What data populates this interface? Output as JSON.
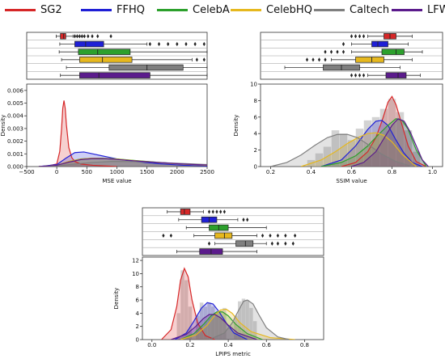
{
  "legend": [
    {
      "name": "SG2",
      "color": "#d62728"
    },
    {
      "name": "FFHQ",
      "color": "#1f1fd6"
    },
    {
      "name": "CelebA",
      "color": "#2ca02c"
    },
    {
      "name": "CelebHQ",
      "color": "#e6b81e"
    },
    {
      "name": "Caltech",
      "color": "#7f7f7f"
    },
    {
      "name": "LFW",
      "color": "#5b1b8c"
    }
  ],
  "chart_data": [
    {
      "type": "box+density",
      "xlabel": "MSE value",
      "ylabel": "Density",
      "xlim": [
        -500,
        2500
      ],
      "ylim": [
        0,
        0.0065
      ],
      "xticks": [
        -500,
        0,
        500,
        1000,
        1500,
        2000,
        2500
      ],
      "yticks": [
        0.0,
        0.001,
        0.002,
        0.003,
        0.004,
        0.005,
        0.006
      ],
      "ytick_labels": [
        "0.000",
        "0.001",
        "0.002",
        "0.003",
        "0.004",
        "0.005",
        "0.006"
      ],
      "xtick_labels": [
        "−500",
        "0",
        "500",
        "1000",
        "1500",
        "2000",
        "2500"
      ],
      "boxes": [
        {
          "name": "SG2",
          "q1": 60,
          "median": 115,
          "q3": 150,
          "wl": -10,
          "wh": 270,
          "outliers": [
            300,
            340,
            380,
            420,
            460,
            520,
            590,
            680,
            900
          ]
        },
        {
          "name": "FFHQ",
          "q1": 300,
          "median": 480,
          "q3": 780,
          "wl": 50,
          "wh": 1500,
          "outliers": [
            1550,
            1700,
            1850,
            2000,
            2150,
            2300,
            2450
          ]
        },
        {
          "name": "CelebA",
          "q1": 360,
          "median": 680,
          "q3": 1220,
          "wl": 40,
          "wh": 2500,
          "outliers": []
        },
        {
          "name": "CelebHQ",
          "q1": 380,
          "median": 760,
          "q3": 1250,
          "wl": 80,
          "wh": 2250,
          "outliers": [
            2330,
            2450
          ]
        },
        {
          "name": "Caltech",
          "q1": 870,
          "median": 1500,
          "q3": 2100,
          "wl": 160,
          "wh": 2500,
          "outliers": []
        },
        {
          "name": "LFW",
          "q1": 380,
          "median": 700,
          "q3": 1550,
          "wl": 60,
          "wh": 2500,
          "outliers": []
        }
      ],
      "curves": [
        {
          "name": "SG2",
          "x": [
            -200,
            0,
            50,
            80,
            100,
            120,
            140,
            160,
            200,
            250,
            300,
            400,
            600,
            800,
            1000
          ],
          "y": [
            0,
            0.0002,
            0.0012,
            0.003,
            0.0046,
            0.0052,
            0.0046,
            0.0033,
            0.0015,
            0.0007,
            0.0004,
            0.0002,
            0.0001,
            5e-05,
            0
          ]
        },
        {
          "name": "FFHQ",
          "x": [
            -300,
            0,
            150,
            300,
            450,
            600,
            800,
            1000,
            1300,
            1700,
            2100,
            2500
          ],
          "y": [
            0,
            0.00015,
            0.00065,
            0.0011,
            0.00115,
            0.001,
            0.0008,
            0.0006,
            0.0004,
            0.00022,
            0.0001,
            5e-05
          ]
        },
        {
          "name": "CelebA",
          "x": [
            -300,
            0,
            200,
            400,
            600,
            800,
            1000,
            1300,
            1700,
            2100,
            2500
          ],
          "y": [
            0,
            0.0001,
            0.0004,
            0.0006,
            0.00066,
            0.00065,
            0.0006,
            0.00048,
            0.00033,
            0.0002,
            0.00012
          ]
        },
        {
          "name": "CelebHQ",
          "x": [
            -300,
            0,
            200,
            400,
            600,
            800,
            1000,
            1300,
            1700,
            2100,
            2500
          ],
          "y": [
            0,
            0.0001,
            0.0004,
            0.00058,
            0.00066,
            0.00064,
            0.00058,
            0.00046,
            0.00031,
            0.00019,
            0.0001
          ]
        },
        {
          "name": "Caltech",
          "x": [
            -300,
            0,
            300,
            600,
            900,
            1200,
            1500,
            1800,
            2100,
            2500
          ],
          "y": [
            0,
            5e-05,
            0.0002,
            0.00033,
            0.0004,
            0.0004,
            0.00036,
            0.0003,
            0.00024,
            0.00016
          ]
        },
        {
          "name": "LFW",
          "x": [
            -300,
            0,
            200,
            400,
            600,
            800,
            1000,
            1300,
            1700,
            2100,
            2500
          ],
          "y": [
            0,
            0.0001,
            0.00035,
            0.00055,
            0.00063,
            0.00062,
            0.00056,
            0.00045,
            0.00032,
            0.0002,
            0.00012
          ]
        }
      ]
    },
    {
      "type": "box+density",
      "xlabel": "SSIM value",
      "ylabel": "Density",
      "xlim": [
        0.15,
        1.05
      ],
      "ylim": [
        0,
        10
      ],
      "xticks": [
        0.2,
        0.4,
        0.6,
        0.8,
        1.0
      ],
      "xtick_labels": [
        "0.2",
        "0.4",
        "0.6",
        "0.8",
        "1.0"
      ],
      "yticks": [
        0,
        2,
        4,
        6,
        8,
        10
      ],
      "ytick_labels": [
        "0",
        "2",
        "4",
        "6",
        "8",
        "10"
      ],
      "boxes": [
        {
          "name": "SG2",
          "q1": 0.76,
          "median": 0.79,
          "q3": 0.82,
          "wl": 0.68,
          "wh": 0.9,
          "outliers": [
            0.6,
            0.62,
            0.64,
            0.66
          ]
        },
        {
          "name": "FFHQ",
          "q1": 0.7,
          "median": 0.73,
          "q3": 0.78,
          "wl": 0.6,
          "wh": 0.88,
          "outliers": [
            0.56
          ]
        },
        {
          "name": "CelebA",
          "q1": 0.75,
          "median": 0.82,
          "q3": 0.86,
          "wl": 0.6,
          "wh": 0.95,
          "outliers": [
            0.47,
            0.5,
            0.53,
            0.56
          ]
        },
        {
          "name": "CelebHQ",
          "q1": 0.62,
          "median": 0.7,
          "q3": 0.76,
          "wl": 0.5,
          "wh": 0.9,
          "outliers": [
            0.38,
            0.41,
            0.44,
            0.47
          ]
        },
        {
          "name": "Caltech",
          "q1": 0.46,
          "median": 0.55,
          "q3": 0.64,
          "wl": 0.27,
          "wh": 0.84,
          "outliers": []
        },
        {
          "name": "LFW",
          "q1": 0.77,
          "median": 0.83,
          "q3": 0.87,
          "wl": 0.68,
          "wh": 0.94,
          "outliers": [
            0.6,
            0.62,
            0.64,
            0.66
          ]
        }
      ],
      "curves": [
        {
          "name": "SG2",
          "x": [
            0.55,
            0.62,
            0.68,
            0.72,
            0.75,
            0.78,
            0.8,
            0.82,
            0.85,
            0.88,
            0.92,
            0.97
          ],
          "y": [
            0,
            0.5,
            1.8,
            3.5,
            5.5,
            7.8,
            8.5,
            7.5,
            5,
            2.5,
            0.6,
            0
          ]
        },
        {
          "name": "FFHQ",
          "x": [
            0.45,
            0.55,
            0.62,
            0.68,
            0.72,
            0.75,
            0.78,
            0.82,
            0.86,
            0.9,
            0.95
          ],
          "y": [
            0,
            0.8,
            2.5,
            4.5,
            5.5,
            5.6,
            5,
            3.2,
            1.6,
            0.5,
            0
          ]
        },
        {
          "name": "CelebA",
          "x": [
            0.45,
            0.55,
            0.62,
            0.68,
            0.73,
            0.78,
            0.82,
            0.85,
            0.88,
            0.92,
            0.97
          ],
          "y": [
            0,
            0.5,
            1.3,
            2.5,
            3.8,
            5,
            5.8,
            5.6,
            4.5,
            2,
            0
          ]
        },
        {
          "name": "CelebHQ",
          "x": [
            0.35,
            0.45,
            0.52,
            0.58,
            0.63,
            0.68,
            0.72,
            0.76,
            0.8,
            0.85,
            0.92
          ],
          "y": [
            0,
            0.8,
            1.8,
            2.8,
            3.5,
            4,
            4.1,
            3.8,
            3,
            1.5,
            0
          ]
        },
        {
          "name": "Caltech",
          "x": [
            0.2,
            0.28,
            0.35,
            0.42,
            0.48,
            0.53,
            0.58,
            0.63,
            0.68,
            0.75,
            0.82,
            0.9
          ],
          "y": [
            0,
            0.5,
            1.4,
            2.6,
            3.5,
            3.9,
            3.9,
            3.5,
            2.7,
            1.5,
            0.6,
            0
          ]
        },
        {
          "name": "LFW",
          "x": [
            0.6,
            0.66,
            0.72,
            0.77,
            0.8,
            0.83,
            0.86,
            0.89,
            0.92,
            0.95,
            0.98
          ],
          "y": [
            0,
            0.5,
            1.8,
            3.8,
            5,
            5.8,
            5.5,
            4.2,
            2.5,
            0.8,
            0
          ]
        }
      ],
      "hist_bars": [
        {
          "x": 0.4,
          "h": 0.8
        },
        {
          "x": 0.44,
          "h": 1.6
        },
        {
          "x": 0.48,
          "h": 2.4
        },
        {
          "x": 0.52,
          "h": 4.4
        },
        {
          "x": 0.56,
          "h": 4.0
        },
        {
          "x": 0.6,
          "h": 3.2
        },
        {
          "x": 0.64,
          "h": 4.6
        },
        {
          "x": 0.68,
          "h": 5.6
        },
        {
          "x": 0.72,
          "h": 6.0
        },
        {
          "x": 0.76,
          "h": 7.0
        },
        {
          "x": 0.8,
          "h": 8.2
        },
        {
          "x": 0.84,
          "h": 6.6
        },
        {
          "x": 0.88,
          "h": 4.4
        },
        {
          "x": 0.92,
          "h": 1.8
        }
      ]
    },
    {
      "type": "box+density",
      "xlabel": "LPIPS metric",
      "ylabel": "Density",
      "xlim": [
        -0.05,
        0.9
      ],
      "ylim": [
        0,
        12.5
      ],
      "xticks": [
        0.0,
        0.2,
        0.4,
        0.6,
        0.8
      ],
      "xtick_labels": [
        "0.0",
        "0.2",
        "0.4",
        "0.6",
        "0.8"
      ],
      "yticks": [
        0,
        2,
        4,
        6,
        8,
        10,
        12
      ],
      "ytick_labels": [
        "0",
        "2",
        "4",
        "6",
        "8",
        "10",
        "12"
      ],
      "boxes": [
        {
          "name": "SG2",
          "q1": 0.15,
          "median": 0.17,
          "q3": 0.2,
          "wl": 0.08,
          "wh": 0.27,
          "outliers": [
            0.3,
            0.32,
            0.34,
            0.36,
            0.38
          ]
        },
        {
          "name": "FFHQ",
          "q1": 0.26,
          "median": 0.3,
          "q3": 0.34,
          "wl": 0.14,
          "wh": 0.45,
          "outliers": [
            0.48,
            0.5
          ]
        },
        {
          "name": "CelebA",
          "q1": 0.3,
          "median": 0.35,
          "q3": 0.4,
          "wl": 0.18,
          "wh": 0.6,
          "outliers": []
        },
        {
          "name": "CelebHQ",
          "q1": 0.33,
          "median": 0.38,
          "q3": 0.42,
          "wl": 0.22,
          "wh": 0.55,
          "outliers": [
            0.06,
            0.1,
            0.58,
            0.62,
            0.66,
            0.7,
            0.75
          ]
        },
        {
          "name": "Caltech",
          "q1": 0.44,
          "median": 0.49,
          "q3": 0.53,
          "wl": 0.33,
          "wh": 0.6,
          "outliers": [
            0.3,
            0.63,
            0.66,
            0.7,
            0.74
          ]
        },
        {
          "name": "LFW",
          "q1": 0.25,
          "median": 0.31,
          "q3": 0.37,
          "wl": 0.13,
          "wh": 0.55,
          "outliers": []
        }
      ],
      "curves": [
        {
          "name": "SG2",
          "x": [
            0.05,
            0.1,
            0.13,
            0.15,
            0.17,
            0.19,
            0.21,
            0.24,
            0.28,
            0.33
          ],
          "y": [
            0,
            1.5,
            5,
            9,
            10.8,
            9.5,
            6,
            2.5,
            0.6,
            0
          ]
        },
        {
          "name": "FFHQ",
          "x": [
            0.12,
            0.18,
            0.22,
            0.26,
            0.29,
            0.32,
            0.35,
            0.39,
            0.43,
            0.5
          ],
          "y": [
            0,
            1,
            2.8,
            4.8,
            5.6,
            5.4,
            4.3,
            2.5,
            1,
            0
          ]
        },
        {
          "name": "CelebA",
          "x": [
            0.15,
            0.22,
            0.27,
            0.31,
            0.34,
            0.37,
            0.4,
            0.44,
            0.5,
            0.58
          ],
          "y": [
            0,
            0.9,
            2.3,
            3.6,
            4.2,
            4.2,
            3.6,
            2.3,
            0.9,
            0
          ]
        },
        {
          "name": "CelebHQ",
          "x": [
            0.15,
            0.23,
            0.29,
            0.33,
            0.36,
            0.39,
            0.42,
            0.46,
            0.52,
            0.62,
            0.75
          ],
          "y": [
            0,
            0.7,
            2.2,
            3.7,
            4.5,
            4.6,
            4,
            2.6,
            1.2,
            0.3,
            0
          ]
        },
        {
          "name": "Caltech",
          "x": [
            0.3,
            0.38,
            0.42,
            0.45,
            0.48,
            0.5,
            0.53,
            0.56,
            0.6,
            0.66,
            0.72
          ],
          "y": [
            0,
            1,
            2.5,
            4.2,
            5.8,
            6,
            5.4,
            3.8,
            1.8,
            0.4,
            0
          ]
        },
        {
          "name": "LFW",
          "x": [
            0.1,
            0.18,
            0.23,
            0.27,
            0.3,
            0.33,
            0.36,
            0.4,
            0.45,
            0.55
          ],
          "y": [
            0,
            0.8,
            2,
            3.2,
            3.8,
            3.8,
            3.3,
            2.2,
            1,
            0
          ]
        }
      ],
      "hist_bars": [
        {
          "x": 0.14,
          "h": 4.0
        },
        {
          "x": 0.16,
          "h": 10.5
        },
        {
          "x": 0.18,
          "h": 9.0
        },
        {
          "x": 0.2,
          "h": 5.0
        },
        {
          "x": 0.24,
          "h": 3.6
        },
        {
          "x": 0.26,
          "h": 5.6
        },
        {
          "x": 0.28,
          "h": 5.0
        },
        {
          "x": 0.3,
          "h": 5.6
        },
        {
          "x": 0.32,
          "h": 5.0
        },
        {
          "x": 0.34,
          "h": 4.0
        },
        {
          "x": 0.36,
          "h": 4.4
        },
        {
          "x": 0.38,
          "h": 4.8
        },
        {
          "x": 0.44,
          "h": 3.6
        },
        {
          "x": 0.46,
          "h": 5.8
        },
        {
          "x": 0.48,
          "h": 6.2
        },
        {
          "x": 0.5,
          "h": 6.0
        },
        {
          "x": 0.52,
          "h": 4.8
        },
        {
          "x": 0.54,
          "h": 2.8
        }
      ]
    }
  ]
}
